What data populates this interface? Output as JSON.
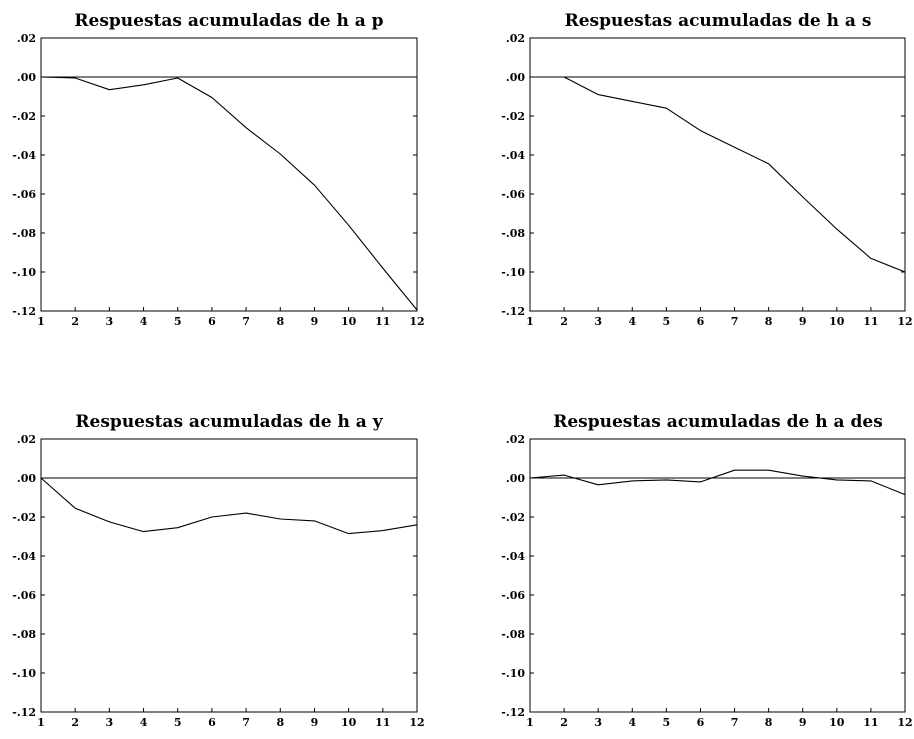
{
  "chart_data": [
    {
      "type": "line",
      "title": "Respuestas acumuladas de h a p",
      "x": [
        1,
        2,
        3,
        4,
        5,
        6,
        7,
        8,
        9,
        10,
        11,
        12
      ],
      "series": [
        {
          "values": [
            0.0,
            -0.0005,
            -0.0065,
            -0.004,
            -0.0005,
            -0.0105,
            -0.026,
            -0.0395,
            -0.0555,
            -0.076,
            -0.098,
            -0.1195
          ]
        }
      ],
      "ylim": [
        -0.12,
        0.02
      ],
      "yticks": [
        0.02,
        0.0,
        -0.02,
        -0.04,
        -0.06,
        -0.08,
        -0.1,
        -0.12
      ],
      "ytick_labels": [
        ".02",
        ".00",
        "-.02",
        "-.04",
        "-.06",
        "-.08",
        "-.10",
        "-.12"
      ],
      "xticks": [
        "1",
        "2",
        "3",
        "4",
        "5",
        "6",
        "7",
        "8",
        "9",
        "10",
        "11",
        "12"
      ],
      "zero_line": true,
      "grid": false
    },
    {
      "type": "line",
      "title": "Respuestas acumuladas de h a s",
      "x": [
        1,
        2,
        3,
        4,
        5,
        6,
        7,
        8,
        9,
        10,
        11,
        12
      ],
      "series": [
        {
          "values": [
            0.0,
            0.0,
            -0.009,
            -0.0125,
            -0.016,
            -0.0275,
            -0.036,
            -0.0445,
            -0.0615,
            -0.078,
            -0.093,
            -0.1
          ]
        }
      ],
      "ylim": [
        -0.12,
        0.02
      ],
      "yticks": [
        0.02,
        0.0,
        -0.02,
        -0.04,
        -0.06,
        -0.08,
        -0.1,
        -0.12
      ],
      "ytick_labels": [
        ".02",
        ".00",
        "-.02",
        "-.04",
        "-.06",
        "-.08",
        "-.10",
        "-.12"
      ],
      "xticks": [
        "1",
        "2",
        "3",
        "4",
        "5",
        "6",
        "7",
        "8",
        "9",
        "10",
        "11",
        "12"
      ],
      "zero_line": true,
      "grid": false
    },
    {
      "type": "line",
      "title": "Respuestas acumuladas de h a y",
      "x": [
        1,
        2,
        3,
        4,
        5,
        6,
        7,
        8,
        9,
        10,
        11,
        12
      ],
      "series": [
        {
          "values": [
            0.0,
            -0.0155,
            -0.0225,
            -0.0275,
            -0.0255,
            -0.02,
            -0.018,
            -0.021,
            -0.022,
            -0.0285,
            -0.027,
            -0.024
          ]
        }
      ],
      "ylim": [
        -0.12,
        0.02
      ],
      "yticks": [
        0.02,
        0.0,
        -0.02,
        -0.04,
        -0.06,
        -0.08,
        -0.1,
        -0.12
      ],
      "ytick_labels": [
        ".02",
        ".00",
        "-.02",
        "-.04",
        "-.06",
        "-.08",
        "-.10",
        "-.12"
      ],
      "xticks": [
        "1",
        "2",
        "3",
        "4",
        "5",
        "6",
        "7",
        "8",
        "9",
        "10",
        "11",
        "12"
      ],
      "zero_line": true,
      "grid": false
    },
    {
      "type": "line",
      "title": "Respuestas acumuladas de h a des",
      "x": [
        1,
        2,
        3,
        4,
        5,
        6,
        7,
        8,
        9,
        10,
        11,
        12
      ],
      "series": [
        {
          "values": [
            0.0,
            0.0015,
            -0.0035,
            -0.0015,
            -0.001,
            -0.002,
            0.004,
            0.004,
            0.001,
            -0.001,
            -0.0015,
            -0.0085
          ]
        }
      ],
      "ylim": [
        -0.12,
        0.02
      ],
      "yticks": [
        0.02,
        0.0,
        -0.02,
        -0.04,
        -0.06,
        -0.08,
        -0.1,
        -0.12
      ],
      "ytick_labels": [
        ".02",
        ".00",
        "-.02",
        "-.04",
        "-.06",
        "-.08",
        "-.10",
        "-.12"
      ],
      "xticks": [
        "1",
        "2",
        "3",
        "4",
        "5",
        "6",
        "7",
        "8",
        "9",
        "10",
        "11",
        "12"
      ],
      "zero_line": true,
      "grid": false
    }
  ]
}
